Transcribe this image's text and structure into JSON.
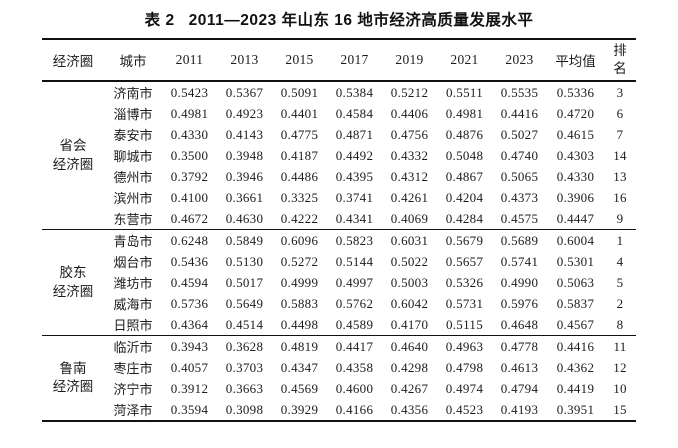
{
  "title": {
    "label": "表 2",
    "text": "2011—2023 年山东 16 地市经济高质量发展水平"
  },
  "table": {
    "headers": [
      "经济圈",
      "城市",
      "2011",
      "2013",
      "2015",
      "2017",
      "2019",
      "2021",
      "2023",
      "平均值",
      "排名"
    ],
    "groups": [
      {
        "name": "省会\n经济圈",
        "rows": [
          {
            "city": "济南市",
            "values": [
              "0.5423",
              "0.5367",
              "0.5091",
              "0.5384",
              "0.5212",
              "0.5511",
              "0.5535"
            ],
            "avg": "0.5336",
            "rank": "3"
          },
          {
            "city": "淄博市",
            "values": [
              "0.4981",
              "0.4923",
              "0.4401",
              "0.4584",
              "0.4406",
              "0.4981",
              "0.4416"
            ],
            "avg": "0.4720",
            "rank": "6"
          },
          {
            "city": "泰安市",
            "values": [
              "0.4330",
              "0.4143",
              "0.4775",
              "0.4871",
              "0.4756",
              "0.4876",
              "0.5027"
            ],
            "avg": "0.4615",
            "rank": "7"
          },
          {
            "city": "聊城市",
            "values": [
              "0.3500",
              "0.3948",
              "0.4187",
              "0.4492",
              "0.4332",
              "0.5048",
              "0.4740"
            ],
            "avg": "0.4303",
            "rank": "14"
          },
          {
            "city": "德州市",
            "values": [
              "0.3792",
              "0.3946",
              "0.4486",
              "0.4395",
              "0.4312",
              "0.4867",
              "0.5065"
            ],
            "avg": "0.4330",
            "rank": "13"
          },
          {
            "city": "滨州市",
            "values": [
              "0.4100",
              "0.3661",
              "0.3325",
              "0.3741",
              "0.4261",
              "0.4204",
              "0.4373"
            ],
            "avg": "0.3906",
            "rank": "16"
          },
          {
            "city": "东营市",
            "values": [
              "0.4672",
              "0.4630",
              "0.4222",
              "0.4341",
              "0.4069",
              "0.4284",
              "0.4575"
            ],
            "avg": "0.4447",
            "rank": "9"
          }
        ]
      },
      {
        "name": "胶东\n经济圈",
        "rows": [
          {
            "city": "青岛市",
            "values": [
              "0.6248",
              "0.5849",
              "0.6096",
              "0.5823",
              "0.6031",
              "0.5679",
              "0.5689"
            ],
            "avg": "0.6004",
            "rank": "1"
          },
          {
            "city": "烟台市",
            "values": [
              "0.5436",
              "0.5130",
              "0.5272",
              "0.5144",
              "0.5022",
              "0.5657",
              "0.5741"
            ],
            "avg": "0.5301",
            "rank": "4"
          },
          {
            "city": "潍坊市",
            "values": [
              "0.4594",
              "0.5017",
              "0.4999",
              "0.4997",
              "0.5003",
              "0.5326",
              "0.4990"
            ],
            "avg": "0.5063",
            "rank": "5"
          },
          {
            "city": "威海市",
            "values": [
              "0.5736",
              "0.5649",
              "0.5883",
              "0.5762",
              "0.6042",
              "0.5731",
              "0.5976"
            ],
            "avg": "0.5837",
            "rank": "2"
          },
          {
            "city": "日照市",
            "values": [
              "0.4364",
              "0.4514",
              "0.4498",
              "0.4589",
              "0.4170",
              "0.5115",
              "0.4648"
            ],
            "avg": "0.4567",
            "rank": "8"
          }
        ]
      },
      {
        "name": "鲁南\n经济圈",
        "rows": [
          {
            "city": "临沂市",
            "values": [
              "0.3943",
              "0.3628",
              "0.4819",
              "0.4417",
              "0.4640",
              "0.4963",
              "0.4778"
            ],
            "avg": "0.4416",
            "rank": "11"
          },
          {
            "city": "枣庄市",
            "values": [
              "0.4057",
              "0.3703",
              "0.4347",
              "0.4358",
              "0.4298",
              "0.4798",
              "0.4613"
            ],
            "avg": "0.4362",
            "rank": "12"
          },
          {
            "city": "济宁市",
            "values": [
              "0.3912",
              "0.3663",
              "0.4569",
              "0.4600",
              "0.4267",
              "0.4974",
              "0.4794"
            ],
            "avg": "0.4419",
            "rank": "10"
          },
          {
            "city": "菏泽市",
            "values": [
              "0.3594",
              "0.3098",
              "0.3929",
              "0.4166",
              "0.4356",
              "0.4523",
              "0.4193"
            ],
            "avg": "0.3951",
            "rank": "15"
          }
        ]
      }
    ]
  }
}
